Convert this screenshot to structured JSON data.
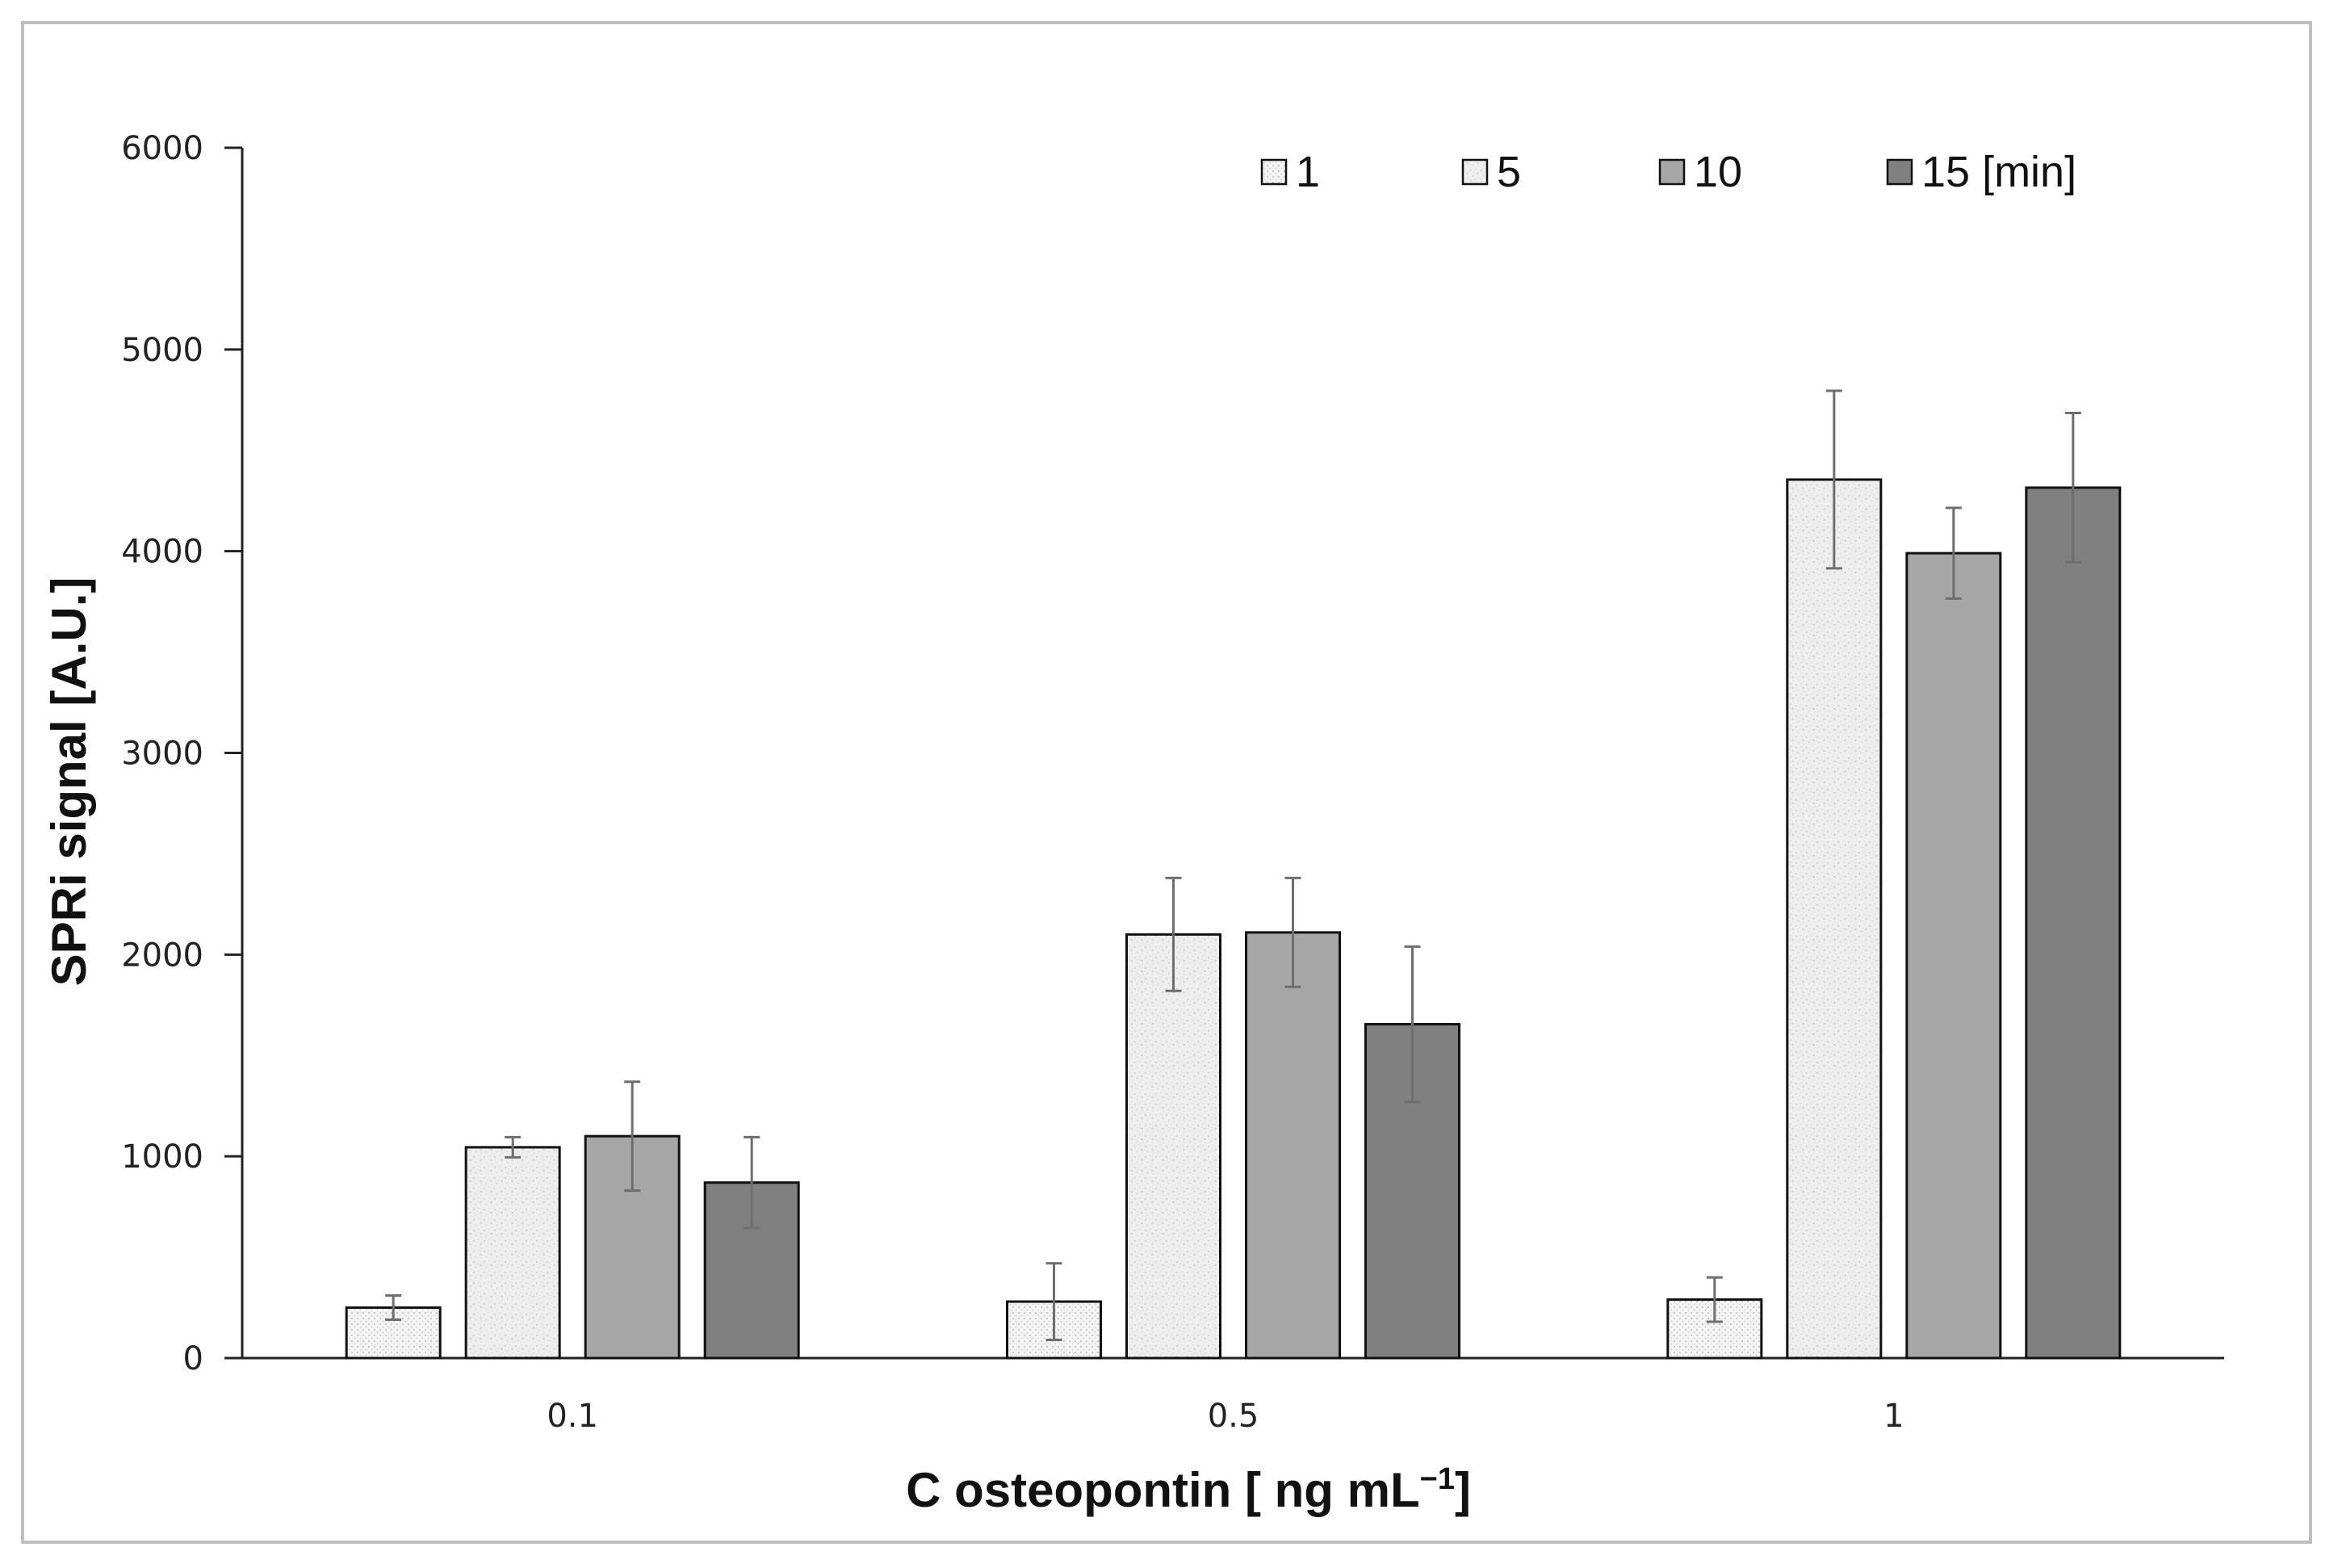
{
  "chart_data": {
    "type": "bar",
    "title": "",
    "xlabel": "C osteopontin [ ng mL",
    "xlabel_superscript": "−1",
    "xlabel_suffix": "]",
    "ylabel": "SPRi signal [A.U.]",
    "ylim": [
      0,
      6000
    ],
    "yticks": [
      0,
      1000,
      2000,
      3000,
      4000,
      5000,
      6000
    ],
    "categories": [
      "0.1",
      "0.5",
      "1"
    ],
    "legend_position": "top-right",
    "series": [
      {
        "name": "1",
        "values": [
          250,
          280,
          290
        ],
        "errors": [
          60,
          190,
          110
        ],
        "color": "#f3f3f3",
        "pattern": "dots"
      },
      {
        "name": "5",
        "values": [
          1045,
          2100,
          4355
        ],
        "errors": [
          50,
          280,
          440
        ],
        "color": "#ebebeb",
        "pattern": "speckle"
      },
      {
        "name": "10",
        "values": [
          1100,
          2110,
          3990
        ],
        "errors": [
          270,
          270,
          225
        ],
        "color": "#a6a6a6",
        "pattern": "none"
      },
      {
        "name": "15 [min]",
        "values": [
          870,
          1655,
          4315
        ],
        "errors": [
          225,
          385,
          370
        ],
        "color": "#808080",
        "pattern": "none"
      }
    ]
  }
}
